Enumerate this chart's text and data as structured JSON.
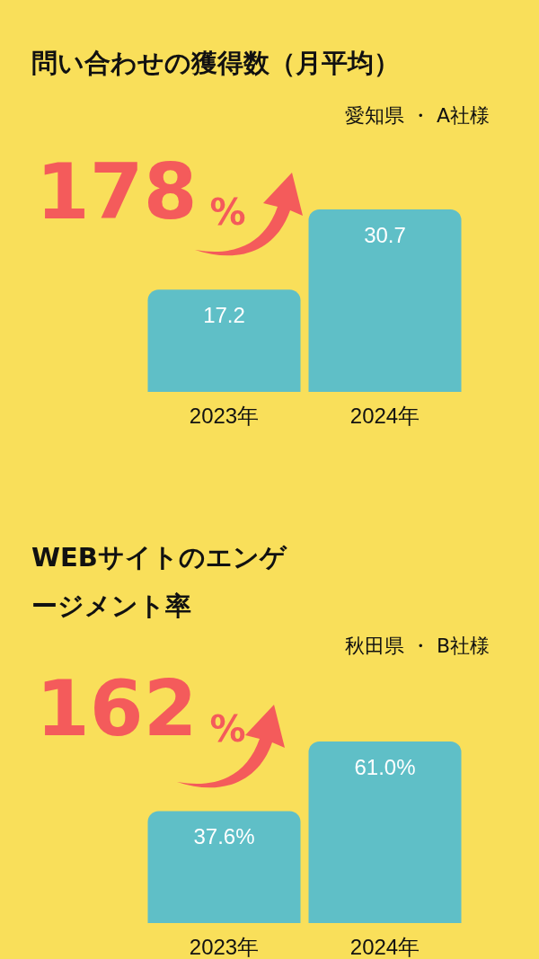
{
  "chart_data": [
    {
      "type": "bar",
      "title": "問い合わせの獲得数（月平均）",
      "subtitle": "愛知県 ・ A社様",
      "categories": [
        "2023年",
        "2024年"
      ],
      "values": [
        17.2,
        30.7
      ],
      "color": "#5fbfc7",
      "data_labels": true,
      "annotations": [
        "178%"
      ]
    },
    {
      "type": "bar",
      "title": "WEBサイトのエンゲージメント率",
      "subtitle": "秋田県 ・ B社様",
      "categories": [
        "2023年",
        "2024年"
      ],
      "values": [
        37.6,
        61.0
      ],
      "color": "#5fbfc7",
      "value_labels": [
        "37.6%",
        "61.0%"
      ],
      "annotations": [
        "162%"
      ]
    }
  ]
}
